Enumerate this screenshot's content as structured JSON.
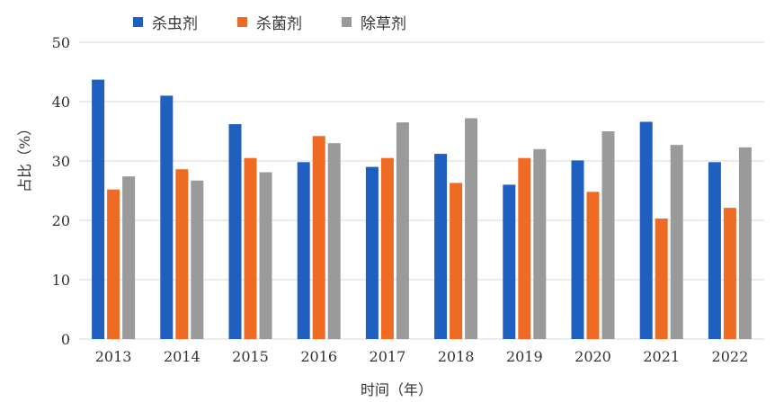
{
  "chart_data": {
    "type": "bar",
    "title": "",
    "xlabel": "时间（年）",
    "ylabel": "占比（%）",
    "categories": [
      "2013",
      "2014",
      "2015",
      "2016",
      "2017",
      "2018",
      "2019",
      "2020",
      "2021",
      "2022"
    ],
    "series": [
      {
        "name": "杀虫剂",
        "color": "#1f5fbf",
        "values": [
          43.7,
          41.0,
          36.2,
          29.8,
          29.0,
          31.2,
          26.0,
          30.1,
          36.6,
          29.8
        ]
      },
      {
        "name": "杀菌剂",
        "color": "#ef6b24",
        "values": [
          25.2,
          28.6,
          30.5,
          34.2,
          30.5,
          26.3,
          30.5,
          24.8,
          20.3,
          22.1
        ]
      },
      {
        "name": "除草剂",
        "color": "#9a9a9a",
        "values": [
          27.4,
          26.7,
          28.1,
          33.0,
          36.5,
          37.2,
          32.0,
          35.0,
          32.7,
          32.3
        ]
      }
    ],
    "ylim": [
      0,
      50
    ],
    "yticks": [
      0,
      10,
      20,
      30,
      40,
      50
    ],
    "grid": true,
    "legend_position": "top-left"
  }
}
